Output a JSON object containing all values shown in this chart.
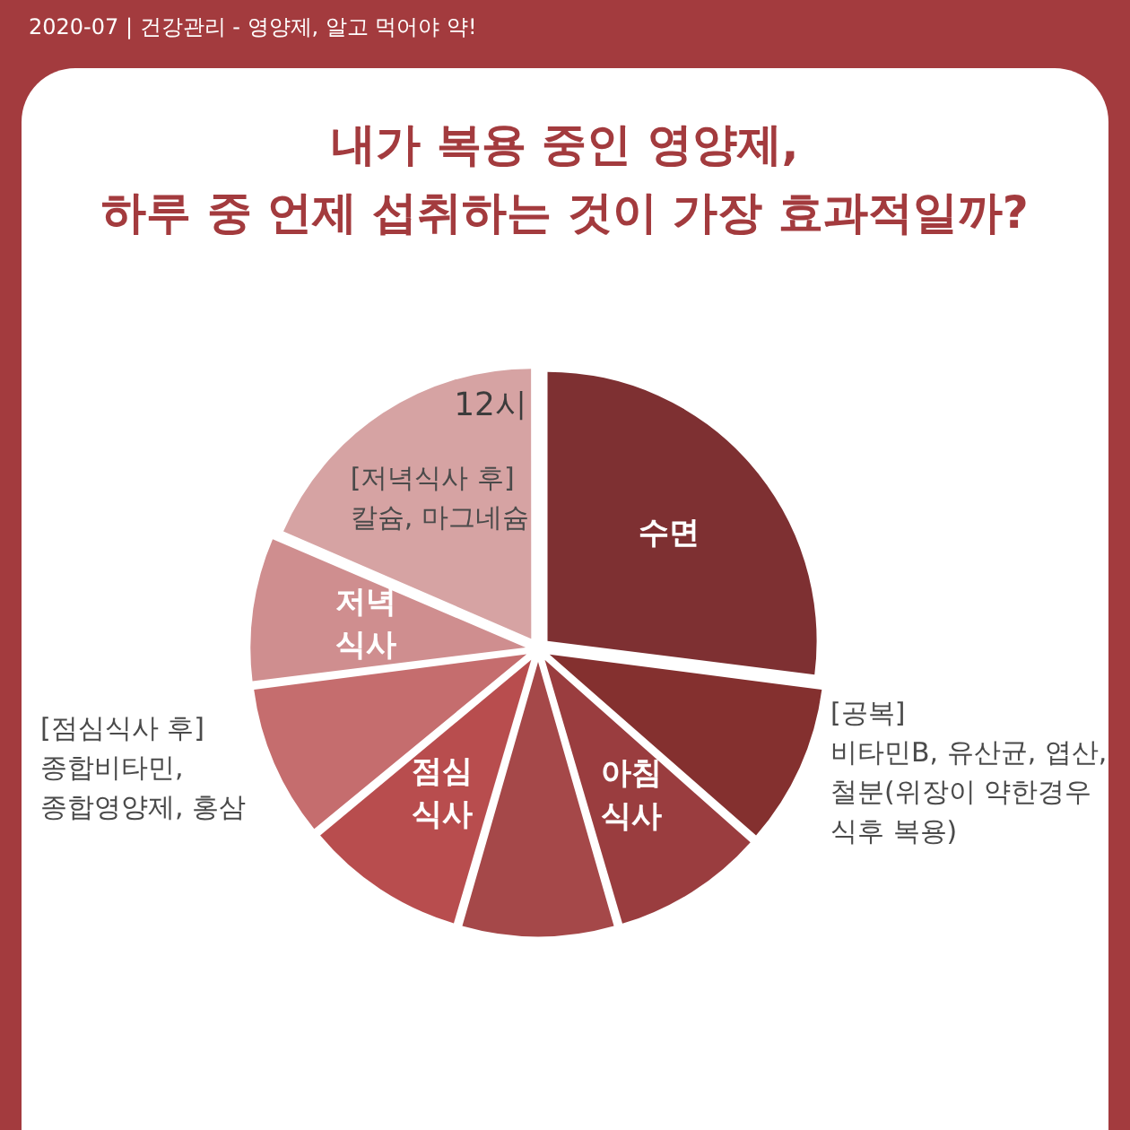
{
  "chart_data": {
    "type": "pie",
    "title": "내가 복용 중인 영양제,\n하루 중 언제 섭취하는 것이 가장 효과적일까?",
    "subtitle": "2020-07 | 건강관리 - 영양제, 알고 먹어야 약!",
    "categories": [
      "수면",
      "[공복]\n비타민B, 유산균, 엽산,\n철분(위장이 약한경우\n식후 복용)",
      "아침\n식사",
      null,
      "점심\n식사",
      "[점심식사 후]\n종합비타민,\n종합영양제, 홍삼",
      "저녁\n식사",
      "[저녁식사 후]\n칼슘, 마그네슘"
    ],
    "values": [
      27,
      9.5,
      9,
      9,
      9.5,
      9,
      8.5,
      18.5
    ],
    "colors": [
      "#7e3032",
      "#84302f",
      "#9a3d3f",
      "#a54849",
      "#b84d4e",
      "#c56d6e",
      "#cf8e8f",
      "#d6a3a3"
    ],
    "annotations": [
      "12시"
    ]
  }
}
